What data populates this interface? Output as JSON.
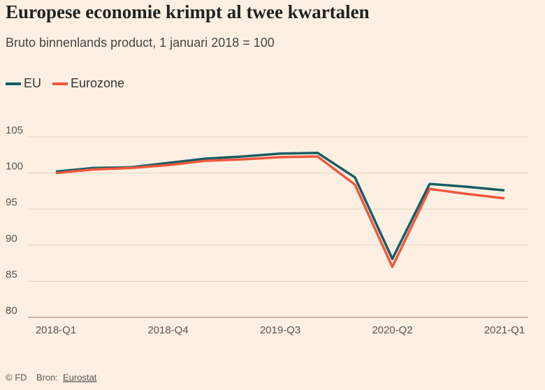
{
  "chart_data": {
    "type": "line",
    "title": "Europese economie krimpt al twee kwartalen",
    "subtitle": "Bruto binnenlands product, 1 januari 2018 = 100",
    "categories": [
      "2018-Q1",
      null,
      null,
      "2018-Q4",
      null,
      null,
      "2019-Q3",
      null,
      null,
      "2020-Q2",
      null,
      null,
      "2021-Q1"
    ],
    "series": [
      {
        "name": "EU",
        "color": "#165e63",
        "values": [
          100.2,
          100.7,
          100.8,
          101.4,
          102.0,
          102.3,
          102.7,
          102.8,
          99.4,
          88.1,
          98.5,
          98.1,
          97.6
        ]
      },
      {
        "name": "Eurozone",
        "color": "#f0583e",
        "values": [
          100.0,
          100.5,
          100.7,
          101.1,
          101.7,
          101.9,
          102.2,
          102.3,
          98.4,
          87.0,
          97.8,
          97.1,
          96.5
        ]
      }
    ],
    "ylim": [
      80,
      105
    ],
    "yticks": [
      80,
      85,
      90,
      95,
      100,
      105
    ],
    "grid": true,
    "legend": "top-left",
    "credit": "© FD",
    "source_label": "Bron:",
    "source": "Eurostat"
  }
}
